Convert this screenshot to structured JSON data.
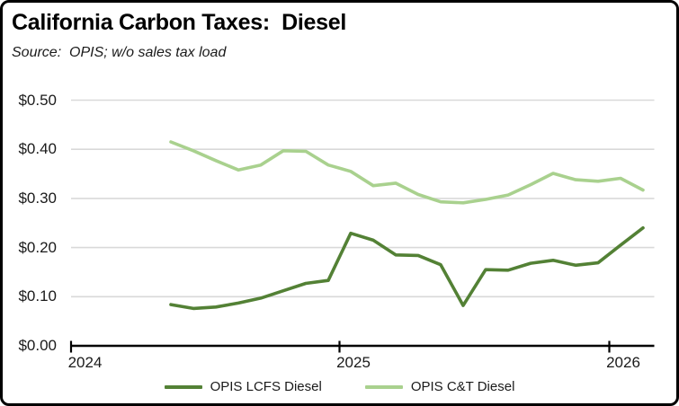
{
  "header": {
    "title": "California Carbon Taxes:  Diesel",
    "source": "Source:  OPIS; w/o sales tax load"
  },
  "colors": {
    "lcfs_line": "#538135",
    "ct_line": "#A9D18E",
    "gridline": "#D9D9D9",
    "axis": "#000000"
  },
  "chart_data": {
    "type": "line",
    "title": "California Carbon Taxes:  Diesel",
    "subtitle": "Source:  OPIS; w/o sales tax load",
    "x": [
      "May-24",
      "Jun-24",
      "Jul-24",
      "Aug-24",
      "Sep-24",
      "Oct-24",
      "Nov-24",
      "Dec-24",
      "Jan-25",
      "Feb-25",
      "Mar-25",
      "Apr-25",
      "May-25",
      "Jun-25",
      "Jul-25",
      "Aug-25",
      "Sep-25",
      "Oct-25",
      "Nov-25",
      "Dec-25",
      "Jan-26",
      "Feb-26"
    ],
    "series": [
      {
        "name": "OPIS LCFS Diesel",
        "color": "#538135",
        "values": [
          0.084,
          0.076,
          0.079,
          0.087,
          0.097,
          0.112,
          0.127,
          0.133,
          0.229,
          0.215,
          0.185,
          0.184,
          0.165,
          0.082,
          0.155,
          0.154,
          0.168,
          0.174,
          0.164,
          0.169,
          0.205,
          0.24
        ]
      },
      {
        "name": "OPIS C&T Diesel",
        "color": "#A9D18E",
        "values": [
          0.415,
          0.397,
          0.377,
          0.358,
          0.368,
          0.397,
          0.396,
          0.368,
          0.355,
          0.326,
          0.331,
          0.308,
          0.293,
          0.291,
          0.298,
          0.307,
          0.328,
          0.351,
          0.338,
          0.335,
          0.341,
          0.317
        ]
      }
    ],
    "y_axis": {
      "ticks": [
        {
          "label": "$0.00",
          "value": 0.0
        },
        {
          "label": "$0.10",
          "value": 0.1
        },
        {
          "label": "$0.20",
          "value": 0.2
        },
        {
          "label": "$0.30",
          "value": 0.3
        },
        {
          "label": "$0.40",
          "value": 0.4
        },
        {
          "label": "$0.50",
          "value": 0.5
        }
      ],
      "ylim": [
        0,
        0.5
      ]
    },
    "x_axis": {
      "tick_labels": [
        "2024",
        "2025",
        "2026"
      ]
    },
    "legend_position": "bottom",
    "grid": "horizontal"
  }
}
